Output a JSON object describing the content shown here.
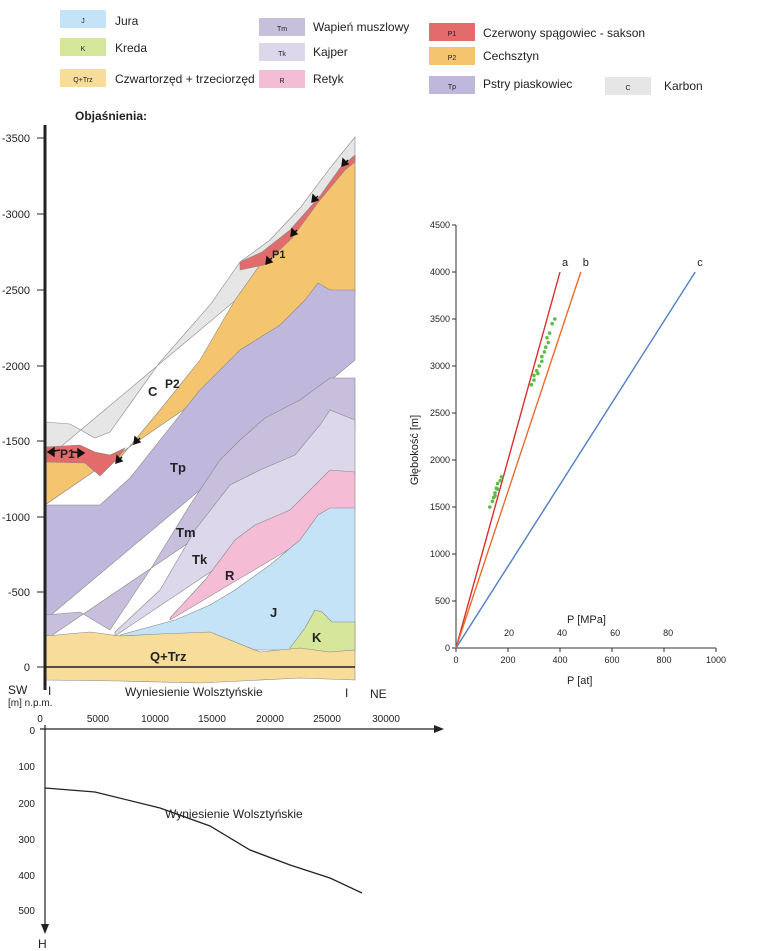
{
  "legend": {
    "jura": {
      "code": "J",
      "label": "Jura",
      "color": "#c5e3f7"
    },
    "kreda": {
      "code": "K",
      "label": "Kreda",
      "color": "#d6e79c"
    },
    "czwartorzed": {
      "code": "Q+Trz",
      "label": "Czwartorzęd + trzeciorzęd",
      "color": "#f8dc9a"
    },
    "wapien": {
      "code": "Tm",
      "label": "Wapień muszlowy",
      "color": "#c7bfdc"
    },
    "kajper": {
      "code": "Tk",
      "label": "Kajper",
      "color": "#dcd7ea"
    },
    "retyk": {
      "code": "R",
      "label": "Retyk",
      "color": "#f5bcd6"
    },
    "czerwony": {
      "code": "P1",
      "label": "Czerwony spągowiec - sakson",
      "color": "#e46b6b"
    },
    "cechsztyn": {
      "code": "P2",
      "label": "Cechsztyn",
      "color": "#f5c46e"
    },
    "pstry": {
      "code": "Tp",
      "label": "Pstry piaskowiec",
      "color": "#c0b7dc"
    },
    "karbon": {
      "code": "C",
      "label": "Karbon",
      "color": "#e6e6e6"
    },
    "title": "Objaśnienia:"
  },
  "section": {
    "y_ticks": [
      "-3500",
      "-3000",
      "-2500",
      "-2000",
      "-1500",
      "-1000",
      "-500",
      "0"
    ],
    "y_unit": "[m] n.p.m.",
    "sw": "SW",
    "ne": "NE",
    "line_marker_left": "I",
    "line_marker_right": "I",
    "bottom_title": "Wyniesienie Wolsztyńskie",
    "labels": {
      "c": "C",
      "p2": "P2",
      "p1_left": "P1",
      "p1_right": "P1",
      "tp": "Tp",
      "tm": "Tm",
      "tk": "Tk",
      "r": "R",
      "j": "J",
      "k": "K",
      "q": "Q+Trz"
    }
  },
  "profile": {
    "x_ticks": [
      "0",
      "5000",
      "10000",
      "15000",
      "20000",
      "25000",
      "30000"
    ],
    "y_ticks": [
      "0",
      "100",
      "200",
      "300",
      "400",
      "500"
    ],
    "y_axis_label": "H",
    "curve_label": "Wyniesienie Wolsztyńskie"
  },
  "chart_data": {
    "type": "line",
    "x_label": "P [at]",
    "x_label_2": "P [MPa]",
    "y_label": "Głębokość [m]",
    "x_ticks": [
      "0",
      "200",
      "400",
      "600",
      "800",
      "1000"
    ],
    "x2_ticks": [
      "20",
      "40",
      "60",
      "80"
    ],
    "y_ticks": [
      "0",
      "500",
      "1000",
      "1500",
      "2000",
      "2500",
      "3000",
      "3500",
      "4000",
      "4500"
    ],
    "xlim": [
      0,
      1000
    ],
    "ylim": [
      0,
      4500
    ],
    "series": [
      {
        "name": "a",
        "color": "#d9302c",
        "points": [
          [
            0,
            0
          ],
          [
            400,
            4000
          ]
        ]
      },
      {
        "name": "b",
        "color": "#ee6b2a",
        "points": [
          [
            0,
            0
          ],
          [
            480,
            4000
          ]
        ]
      },
      {
        "name": "c",
        "color": "#4f7fc6",
        "points": [
          [
            0,
            0
          ],
          [
            920,
            4000
          ]
        ]
      }
    ],
    "scatter": {
      "color": "#5bbd45",
      "points": [
        [
          130,
          1500
        ],
        [
          145,
          1600
        ],
        [
          150,
          1650
        ],
        [
          155,
          1700
        ],
        [
          160,
          1750
        ],
        [
          170,
          1780
        ],
        [
          175,
          1820
        ],
        [
          160,
          1690
        ],
        [
          150,
          1620
        ],
        [
          140,
          1560
        ],
        [
          290,
          2800
        ],
        [
          300,
          2900
        ],
        [
          310,
          2950
        ],
        [
          320,
          3000
        ],
        [
          330,
          3100
        ],
        [
          340,
          3150
        ],
        [
          345,
          3200
        ],
        [
          350,
          3300
        ],
        [
          360,
          3350
        ],
        [
          370,
          3450
        ],
        [
          380,
          3500
        ],
        [
          300,
          2850
        ],
        [
          315,
          2920
        ],
        [
          330,
          3050
        ],
        [
          355,
          3250
        ]
      ]
    }
  }
}
